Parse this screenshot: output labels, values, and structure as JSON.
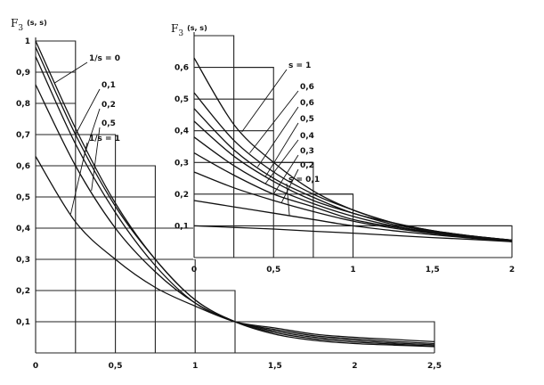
{
  "chart_data": [
    {
      "id": "main",
      "type": "line",
      "ylabel": "F",
      "ylabel_sub": "3",
      "ylabel_args": "(s, s)",
      "xlim": [
        0,
        2.5
      ],
      "ylim": [
        0,
        1
      ],
      "x_ticks": [
        {
          "v": 0,
          "t": "0"
        },
        {
          "v": 0.5,
          "t": "0,5"
        },
        {
          "v": 1,
          "t": "1"
        },
        {
          "v": 1.5,
          "t": "1,5"
        },
        {
          "v": 2,
          "t": "2"
        },
        {
          "v": 2.5,
          "t": "2,5"
        }
      ],
      "y_ticks": [
        {
          "v": 0.1,
          "t": "0,1"
        },
        {
          "v": 0.2,
          "t": "0,2"
        },
        {
          "v": 0.3,
          "t": "0,3"
        },
        {
          "v": 0.4,
          "t": "0,4"
        },
        {
          "v": 0.5,
          "t": "0,5"
        },
        {
          "v": 0.6,
          "t": "0,6"
        },
        {
          "v": 0.7,
          "t": "0,7"
        },
        {
          "v": 0.8,
          "t": "0,8"
        },
        {
          "v": 0.9,
          "t": "0,9"
        },
        {
          "v": 1,
          "t": "1"
        }
      ],
      "grid": true,
      "series": [
        {
          "name": "1/s = 0",
          "x": [
            0,
            0.25,
            0.5,
            0.75,
            1,
            1.25,
            1.5,
            1.75,
            2,
            2.25,
            2.5
          ],
          "y": [
            1.0,
            0.72,
            0.48,
            0.3,
            0.17,
            0.1,
            0.06,
            0.04,
            0.03,
            0.025,
            0.02
          ]
        },
        {
          "name": "0,1",
          "x": [
            0,
            0.25,
            0.5,
            0.75,
            1,
            1.25,
            1.5,
            1.75,
            2,
            2.25,
            2.5
          ],
          "y": [
            0.98,
            0.7,
            0.47,
            0.3,
            0.17,
            0.1,
            0.065,
            0.045,
            0.035,
            0.028,
            0.022
          ]
        },
        {
          "name": "0,2",
          "x": [
            0,
            0.25,
            0.5,
            0.75,
            1,
            1.25,
            1.5,
            1.75,
            2,
            2.25,
            2.5
          ],
          "y": [
            0.95,
            0.67,
            0.45,
            0.28,
            0.16,
            0.1,
            0.07,
            0.05,
            0.04,
            0.032,
            0.026
          ]
        },
        {
          "name": "0,5",
          "x": [
            0,
            0.25,
            0.5,
            0.75,
            1,
            1.25,
            1.5,
            1.75,
            2,
            2.25,
            2.5
          ],
          "y": [
            0.86,
            0.6,
            0.4,
            0.26,
            0.16,
            0.1,
            0.075,
            0.055,
            0.045,
            0.037,
            0.03
          ]
        },
        {
          "name": "1/s = 1",
          "x": [
            0,
            0.25,
            0.5,
            0.75,
            1,
            1.25,
            1.5,
            1.75,
            2,
            2.25,
            2.5
          ],
          "y": [
            0.63,
            0.42,
            0.3,
            0.21,
            0.15,
            0.1,
            0.08,
            0.06,
            0.05,
            0.043,
            0.036
          ]
        }
      ],
      "labels": [
        {
          "series": 0,
          "t": "1/s = 0"
        },
        {
          "series": 1,
          "t": "0,1"
        },
        {
          "series": 2,
          "t": "0,2"
        },
        {
          "series": 3,
          "t": "0,5"
        },
        {
          "series": 4,
          "t": "1/s = 1"
        }
      ]
    },
    {
      "id": "inset",
      "type": "line",
      "ylabel": "F",
      "ylabel_sub": "3",
      "ylabel_args": "(s, s)",
      "xlim": [
        0,
        2
      ],
      "ylim": [
        0,
        0.7
      ],
      "x_ticks": [
        {
          "v": 0,
          "t": "0"
        },
        {
          "v": 0.5,
          "t": "0,5"
        },
        {
          "v": 1,
          "t": "1"
        },
        {
          "v": 1.5,
          "t": "1,5"
        },
        {
          "v": 2,
          "t": "2"
        }
      ],
      "y_ticks": [
        {
          "v": 0.1,
          "t": "0,1"
        },
        {
          "v": 0.2,
          "t": "0,2"
        },
        {
          "v": 0.3,
          "t": "0,3"
        },
        {
          "v": 0.4,
          "t": "0,4"
        },
        {
          "v": 0.5,
          "t": "0,5"
        },
        {
          "v": 0.6,
          "t": "0,6"
        }
      ],
      "grid": true,
      "series": [
        {
          "name": "s = 1",
          "x": [
            0,
            0.25,
            0.5,
            0.75,
            1,
            1.25,
            1.5,
            1.75,
            2
          ],
          "y": [
            0.63,
            0.42,
            0.3,
            0.21,
            0.15,
            0.11,
            0.08,
            0.065,
            0.05
          ]
        },
        {
          "name": "0,6",
          "x": [
            0,
            0.25,
            0.5,
            0.75,
            1,
            1.25,
            1.5,
            1.75,
            2
          ],
          "y": [
            0.52,
            0.37,
            0.27,
            0.2,
            0.15,
            0.11,
            0.085,
            0.068,
            0.055
          ]
        },
        {
          "name": "0,6",
          "x": [
            0,
            0.25,
            0.5,
            0.75,
            1,
            1.25,
            1.5,
            1.75,
            2
          ],
          "y": [
            0.47,
            0.34,
            0.25,
            0.19,
            0.14,
            0.11,
            0.085,
            0.068,
            0.055
          ]
        },
        {
          "name": "0,5",
          "x": [
            0,
            0.25,
            0.5,
            0.75,
            1,
            1.25,
            1.5,
            1.75,
            2
          ],
          "y": [
            0.43,
            0.32,
            0.24,
            0.18,
            0.14,
            0.105,
            0.083,
            0.067,
            0.055
          ]
        },
        {
          "name": "0,4",
          "x": [
            0,
            0.25,
            0.5,
            0.75,
            1,
            1.25,
            1.5,
            1.75,
            2
          ],
          "y": [
            0.38,
            0.29,
            0.22,
            0.17,
            0.13,
            0.1,
            0.08,
            0.065,
            0.054
          ]
        },
        {
          "name": "0,3",
          "x": [
            0,
            0.25,
            0.5,
            0.75,
            1,
            1.25,
            1.5,
            1.75,
            2
          ],
          "y": [
            0.33,
            0.26,
            0.2,
            0.16,
            0.12,
            0.097,
            0.078,
            0.064,
            0.053
          ]
        },
        {
          "name": "0,2",
          "x": [
            0,
            0.25,
            0.5,
            0.75,
            1,
            1.25,
            1.5,
            1.75,
            2
          ],
          "y": [
            0.27,
            0.22,
            0.18,
            0.145,
            0.115,
            0.093,
            0.076,
            0.063,
            0.052
          ]
        },
        {
          "name": "s = 0,1",
          "x": [
            0,
            0.25,
            0.5,
            0.75,
            1,
            1.25,
            1.5,
            1.75,
            2
          ],
          "y": [
            0.18,
            0.16,
            0.14,
            0.12,
            0.1,
            0.085,
            0.072,
            0.061,
            0.051
          ]
        },
        {
          "name": "",
          "x": [
            0,
            0.25,
            0.5,
            0.75,
            1,
            1.25,
            1.5,
            1.75,
            2
          ],
          "y": [
            0.1,
            0.095,
            0.09,
            0.083,
            0.077,
            0.07,
            0.063,
            0.057,
            0.05
          ]
        }
      ],
      "labels": [
        {
          "series": 0,
          "t": "s = 1"
        },
        {
          "series": 1,
          "t": "0,6"
        },
        {
          "series": 2,
          "t": "0,6"
        },
        {
          "series": 3,
          "t": "0,5"
        },
        {
          "series": 4,
          "t": "0,4"
        },
        {
          "series": 5,
          "t": "0,3"
        },
        {
          "series": 6,
          "t": "0,2"
        },
        {
          "series": 7,
          "t": "s = 0,1"
        }
      ]
    }
  ]
}
